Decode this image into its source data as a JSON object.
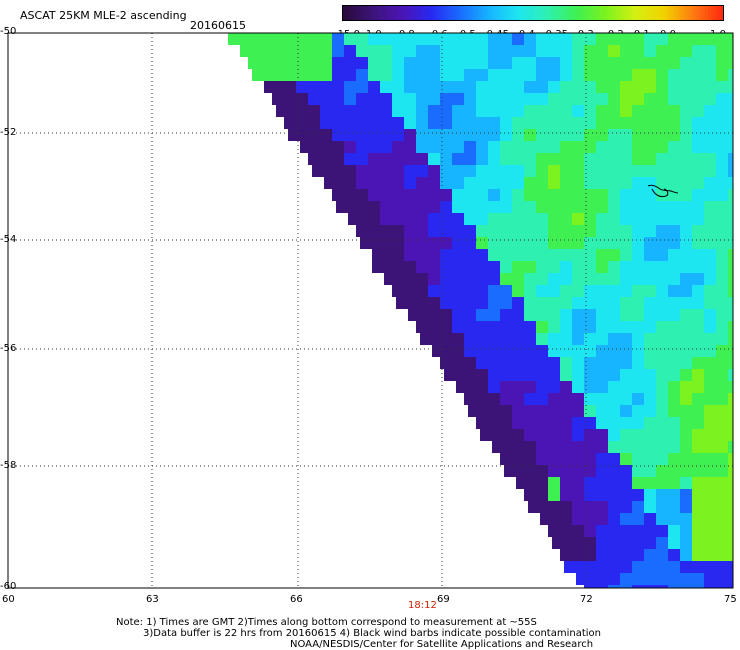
{
  "header": {
    "title": "ASCAT 25KM MLE-2 ascending",
    "date": "20160615"
  },
  "colorbar": {
    "labels": [
      "-15.0",
      "-1.0",
      "-0.8",
      "-0.6",
      "-0.5",
      "-0.45",
      "-0.4",
      "-0.35",
      "-0.3",
      "-0.2",
      "-0.1",
      "0.0",
      "1.0"
    ],
    "colors": [
      "#2a0a3a",
      "#3c1478",
      "#4b14b4",
      "#2828f0",
      "#1a6cff",
      "#17b4ff",
      "#1ee6f0",
      "#2ef0b0",
      "#3ef052",
      "#7cf21e",
      "#d4f012",
      "#f2d200",
      "#ff7a10",
      "#ff2a10"
    ]
  },
  "axes": {
    "y_labels": [
      "-50",
      "-52",
      "-54",
      "-56",
      "-58",
      "-60"
    ],
    "x_labels": [
      "60",
      "63",
      "66",
      "69",
      "72",
      "75"
    ],
    "time_label": "18:12"
  },
  "notes": {
    "line1": "Note: 1) Times are GMT 2)Times along bottom correspond to measurement at ~55S",
    "line2": "3)Data buffer is 22 hrs from 20160615 4) Black wind barbs indicate possible contamination",
    "line3": "NOAA/NESDIS/Center for Satellite Applications and Research"
  }
}
